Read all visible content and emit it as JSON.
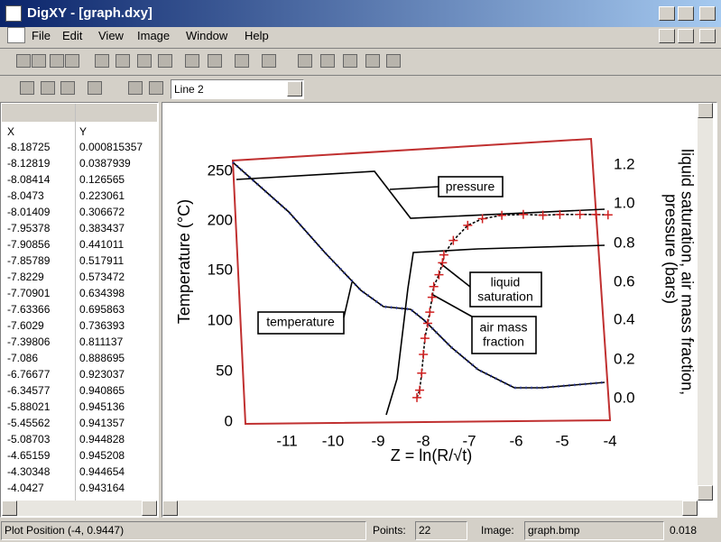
{
  "window": {
    "title": "DigXY - [graph.dxy]"
  },
  "menu": [
    "File",
    "Edit",
    "View",
    "Image",
    "Window",
    "Help"
  ],
  "toolbar": {
    "line_select": "Line 2"
  },
  "table": {
    "headers": [
      "X",
      "Y"
    ],
    "rows": [
      [
        -8.18725,
        0.000815357
      ],
      [
        -8.12819,
        0.0387939
      ],
      [
        -8.08414,
        0.126565
      ],
      [
        -8.0473,
        0.223061
      ],
      [
        -8.01409,
        0.306672
      ],
      [
        -7.95378,
        0.383437
      ],
      [
        -7.90856,
        0.441011
      ],
      [
        -7.85789,
        0.517911
      ],
      [
        -7.8229,
        0.573472
      ],
      [
        -7.70901,
        0.634398
      ],
      [
        -7.63366,
        0.695863
      ],
      [
        -7.6029,
        0.736393
      ],
      [
        -7.39806,
        0.811137
      ],
      [
        -7.086,
        0.888695
      ],
      [
        -6.76677,
        0.923037
      ],
      [
        -6.34577,
        0.940865
      ],
      [
        -5.88021,
        0.945136
      ],
      [
        -5.45562,
        0.941357
      ],
      [
        -5.08703,
        0.944828
      ],
      [
        -4.65159,
        0.945208
      ],
      [
        -4.30348,
        0.944654
      ],
      [
        -4.0427,
        0.943164
      ]
    ]
  },
  "graph_image": {
    "left_axis_label": "Temperature (°C)",
    "left_ticks": [
      "250",
      "200",
      "150",
      "100",
      "50",
      "0"
    ],
    "x_axis_label": "Z = ln(R/√t)",
    "x_ticks": [
      "-11",
      "-10",
      "-9",
      "-8",
      "-7",
      "-6",
      "-5",
      "-4"
    ],
    "right_axis_label_1": "liquid saturation, air mass fraction,",
    "right_axis_label_2": "pressure (bars)",
    "right_ticks": [
      "1.2",
      "1.0",
      "0.8",
      "0.6",
      "0.4",
      "0.2",
      "0.0"
    ],
    "annotations": {
      "pressure": "pressure",
      "liquid_saturation": [
        "liquid",
        "saturation"
      ],
      "air_mass_fraction": [
        "air mass",
        "fraction"
      ],
      "temperature": "temperature"
    }
  },
  "status": {
    "plot_position": "Plot Position (-4, 0.9447)",
    "points_label": "Points:",
    "points": 22,
    "image_label": "Image:",
    "image": "graph.bmp",
    "zoom": "0.018"
  }
}
